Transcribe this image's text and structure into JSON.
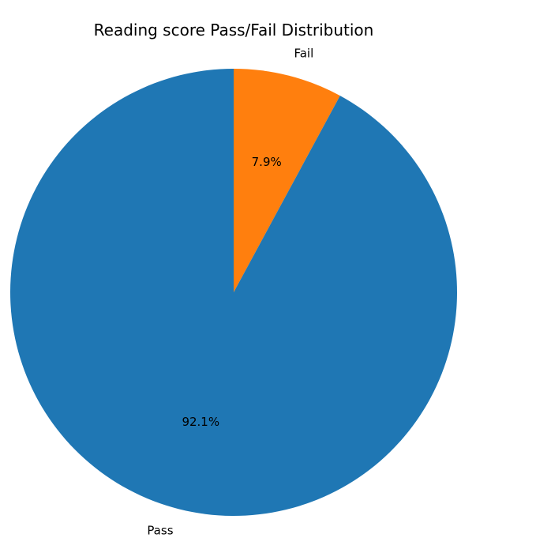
{
  "chart_data": {
    "type": "pie",
    "title": "Reading score Pass/Fail Distribution",
    "slices": [
      {
        "label": "Fail",
        "value": 7.9,
        "pct_label": "7.9%",
        "color": "#ff7f0e"
      },
      {
        "label": "Pass",
        "value": 92.1,
        "pct_label": "92.1%",
        "color": "#1f77b4"
      }
    ],
    "start_angle_deg": 90,
    "direction": "clockwise"
  }
}
